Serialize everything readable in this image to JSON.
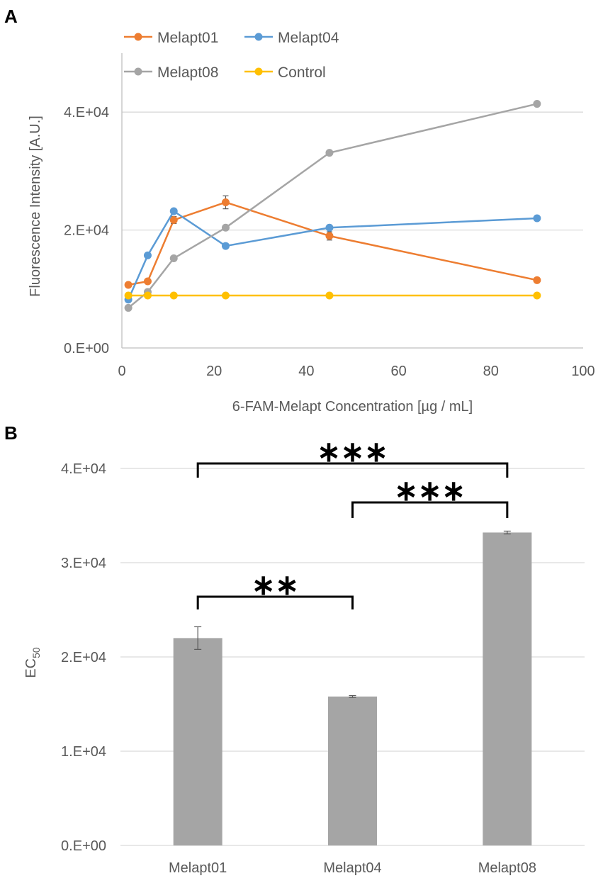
{
  "chart_data": [
    {
      "panel": "A",
      "type": "line",
      "title": "",
      "xlabel": "6-FAM-Melapt Concentration [µg / mL]",
      "ylabel": "Fluorescence Intensity  [A.U.]",
      "xlim": [
        0,
        100
      ],
      "ylim": [
        0,
        50000
      ],
      "x_ticks": [
        0,
        20,
        40,
        60,
        80,
        100
      ],
      "x_tick_labels": [
        "0",
        "20",
        "40",
        "60",
        "80",
        "100"
      ],
      "y_ticks": [
        0,
        20000,
        40000
      ],
      "y_tick_labels": [
        "0.E+00",
        "2.E+04",
        "4.E+04"
      ],
      "grid": true,
      "legend_position": "top-left",
      "x": [
        1.4,
        5.6,
        11.25,
        22.5,
        45,
        90
      ],
      "series": [
        {
          "name": "Melapt01",
          "color": "#ED7D31",
          "values": [
            10700,
            11300,
            21700,
            24700,
            19000,
            11500
          ],
          "errors": [
            300,
            300,
            600,
            1100,
            700,
            300
          ]
        },
        {
          "name": "Melapt04",
          "color": "#5B9BD5",
          "values": [
            8200,
            15700,
            23200,
            17300,
            20400,
            22000
          ],
          "errors": [
            200,
            200,
            300,
            300,
            300,
            200
          ]
        },
        {
          "name": "Melapt08",
          "color": "#A5A5A5",
          "values": [
            6800,
            9500,
            15200,
            20400,
            33100,
            41400
          ],
          "errors": [
            200,
            300,
            300,
            300,
            300,
            300
          ]
        },
        {
          "name": "Control",
          "color": "#FFC000",
          "values": [
            8900,
            8900,
            8900,
            8900,
            8900,
            8900
          ],
          "errors": [
            100,
            100,
            100,
            100,
            100,
            100
          ]
        }
      ]
    },
    {
      "panel": "B",
      "type": "bar",
      "title": "",
      "xlabel": "",
      "ylabel_main": "EC",
      "ylabel_sub": "50",
      "categories": [
        "Melapt01",
        "Melapt04",
        "Melapt08"
      ],
      "values": [
        22000,
        15800,
        33200
      ],
      "errors": [
        1200,
        100,
        150
      ],
      "bar_color": "#A5A5A5",
      "ylim": [
        0,
        40000
      ],
      "y_ticks": [
        0,
        10000,
        20000,
        30000,
        40000
      ],
      "y_tick_labels": [
        "0.E+00",
        "1.E+04",
        "2.E+04",
        "3.E+04",
        "4.E+04"
      ],
      "grid": true,
      "significance": [
        {
          "from": 0,
          "to": 1,
          "label": "**"
        },
        {
          "from": 1,
          "to": 2,
          "label": "***"
        },
        {
          "from": 0,
          "to": 2,
          "label": "***"
        }
      ]
    }
  ],
  "panel_labels": {
    "a": "A",
    "b": "B"
  }
}
